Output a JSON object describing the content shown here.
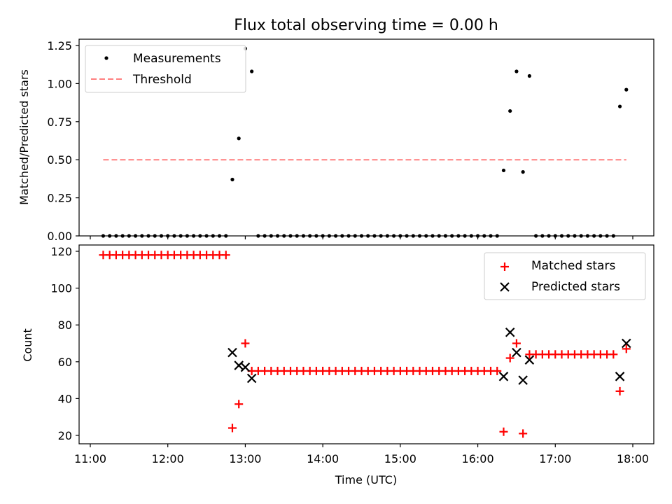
{
  "chart_data": [
    {
      "type": "scatter",
      "title": "Flux total observing time = 0.00 h",
      "xlabel": "",
      "ylabel": "Matched/Predicted stars",
      "xlim": [
        "11:00",
        "18:00"
      ],
      "ylim": [
        0,
        1.25
      ],
      "yticks": [
        "0.00",
        "0.25",
        "0.50",
        "0.75",
        "1.00",
        "1.25"
      ],
      "legend": "top-left",
      "legend_entries": [
        "Measurements",
        "Threshold"
      ],
      "series": [
        {
          "name": "Measurements",
          "color": "#000000",
          "marker": "dot",
          "points": [
            [
              "11:10",
              0
            ],
            [
              "11:15",
              0
            ],
            [
              "11:20",
              0
            ],
            [
              "11:25",
              0
            ],
            [
              "11:30",
              0
            ],
            [
              "11:35",
              0
            ],
            [
              "11:40",
              0
            ],
            [
              "11:45",
              0
            ],
            [
              "11:50",
              0
            ],
            [
              "11:55",
              0
            ],
            [
              "12:00",
              0
            ],
            [
              "12:05",
              0
            ],
            [
              "12:10",
              0
            ],
            [
              "12:15",
              0
            ],
            [
              "12:20",
              0
            ],
            [
              "12:25",
              0
            ],
            [
              "12:30",
              0
            ],
            [
              "12:35",
              0
            ],
            [
              "12:40",
              0
            ],
            [
              "12:45",
              0
            ],
            [
              "12:50",
              0.37
            ],
            [
              "12:55",
              0.64
            ],
            [
              "13:00",
              1.23
            ],
            [
              "13:05",
              1.08
            ],
            [
              "13:10",
              0
            ],
            [
              "13:15",
              0
            ],
            [
              "13:20",
              0
            ],
            [
              "13:25",
              0
            ],
            [
              "13:30",
              0
            ],
            [
              "13:35",
              0
            ],
            [
              "13:40",
              0
            ],
            [
              "13:45",
              0
            ],
            [
              "13:50",
              0
            ],
            [
              "13:55",
              0
            ],
            [
              "14:00",
              0
            ],
            [
              "14:05",
              0
            ],
            [
              "14:10",
              0
            ],
            [
              "14:15",
              0
            ],
            [
              "14:20",
              0
            ],
            [
              "14:25",
              0
            ],
            [
              "14:30",
              0
            ],
            [
              "14:35",
              0
            ],
            [
              "14:40",
              0
            ],
            [
              "14:45",
              0
            ],
            [
              "14:50",
              0
            ],
            [
              "14:55",
              0
            ],
            [
              "15:00",
              0
            ],
            [
              "15:05",
              0
            ],
            [
              "15:10",
              0
            ],
            [
              "15:15",
              0
            ],
            [
              "15:20",
              0
            ],
            [
              "15:25",
              0
            ],
            [
              "15:30",
              0
            ],
            [
              "15:35",
              0
            ],
            [
              "15:40",
              0
            ],
            [
              "15:45",
              0
            ],
            [
              "15:50",
              0
            ],
            [
              "15:55",
              0
            ],
            [
              "16:00",
              0
            ],
            [
              "16:05",
              0
            ],
            [
              "16:10",
              0
            ],
            [
              "16:15",
              0
            ],
            [
              "16:20",
              0.43
            ],
            [
              "16:25",
              0.82
            ],
            [
              "16:30",
              1.08
            ],
            [
              "16:35",
              0.42
            ],
            [
              "16:40",
              1.05
            ],
            [
              "16:45",
              0
            ],
            [
              "16:50",
              0
            ],
            [
              "16:55",
              0
            ],
            [
              "17:00",
              0
            ],
            [
              "17:05",
              0
            ],
            [
              "17:10",
              0
            ],
            [
              "17:15",
              0
            ],
            [
              "17:20",
              0
            ],
            [
              "17:25",
              0
            ],
            [
              "17:30",
              0
            ],
            [
              "17:35",
              0
            ],
            [
              "17:40",
              0
            ],
            [
              "17:45",
              0
            ],
            [
              "17:50",
              0.85
            ],
            [
              "17:55",
              0.96
            ]
          ]
        },
        {
          "name": "Threshold",
          "color": "#ff7f7f",
          "style": "dashed",
          "points": [
            [
              "11:10",
              0.5
            ],
            [
              "17:55",
              0.5
            ]
          ]
        }
      ]
    },
    {
      "type": "scatter",
      "title": "",
      "xlabel": "Time (UTC)",
      "ylabel": "Count",
      "xlim": [
        "11:00",
        "18:00"
      ],
      "ylim": [
        17,
        122
      ],
      "yticks": [
        "20",
        "40",
        "60",
        "80",
        "100",
        "120"
      ],
      "xticks": [
        "11:00",
        "12:00",
        "13:00",
        "14:00",
        "15:00",
        "16:00",
        "17:00",
        "18:00"
      ],
      "legend": "top-right",
      "legend_entries": [
        "Matched stars",
        "Predicted stars"
      ],
      "series": [
        {
          "name": "Matched stars",
          "color": "#ff0000",
          "marker": "plus",
          "points": [
            [
              "11:10",
              118
            ],
            [
              "11:15",
              118
            ],
            [
              "11:20",
              118
            ],
            [
              "11:25",
              118
            ],
            [
              "11:30",
              118
            ],
            [
              "11:35",
              118
            ],
            [
              "11:40",
              118
            ],
            [
              "11:45",
              118
            ],
            [
              "11:50",
              118
            ],
            [
              "11:55",
              118
            ],
            [
              "12:00",
              118
            ],
            [
              "12:05",
              118
            ],
            [
              "12:10",
              118
            ],
            [
              "12:15",
              118
            ],
            [
              "12:20",
              118
            ],
            [
              "12:25",
              118
            ],
            [
              "12:30",
              118
            ],
            [
              "12:35",
              118
            ],
            [
              "12:40",
              118
            ],
            [
              "12:45",
              118
            ],
            [
              "12:50",
              24
            ],
            [
              "12:55",
              37
            ],
            [
              "13:00",
              70
            ],
            [
              "13:05",
              55
            ],
            [
              "13:10",
              55
            ],
            [
              "13:15",
              55
            ],
            [
              "13:20",
              55
            ],
            [
              "13:25",
              55
            ],
            [
              "13:30",
              55
            ],
            [
              "13:35",
              55
            ],
            [
              "13:40",
              55
            ],
            [
              "13:45",
              55
            ],
            [
              "13:50",
              55
            ],
            [
              "13:55",
              55
            ],
            [
              "14:00",
              55
            ],
            [
              "14:05",
              55
            ],
            [
              "14:10",
              55
            ],
            [
              "14:15",
              55
            ],
            [
              "14:20",
              55
            ],
            [
              "14:25",
              55
            ],
            [
              "14:30",
              55
            ],
            [
              "14:35",
              55
            ],
            [
              "14:40",
              55
            ],
            [
              "14:45",
              55
            ],
            [
              "14:50",
              55
            ],
            [
              "14:55",
              55
            ],
            [
              "15:00",
              55
            ],
            [
              "15:05",
              55
            ],
            [
              "15:10",
              55
            ],
            [
              "15:15",
              55
            ],
            [
              "15:20",
              55
            ],
            [
              "15:25",
              55
            ],
            [
              "15:30",
              55
            ],
            [
              "15:35",
              55
            ],
            [
              "15:40",
              55
            ],
            [
              "15:45",
              55
            ],
            [
              "15:50",
              55
            ],
            [
              "15:55",
              55
            ],
            [
              "16:00",
              55
            ],
            [
              "16:05",
              55
            ],
            [
              "16:10",
              55
            ],
            [
              "16:15",
              55
            ],
            [
              "16:20",
              22
            ],
            [
              "16:25",
              62
            ],
            [
              "16:30",
              70
            ],
            [
              "16:35",
              21
            ],
            [
              "16:40",
              64
            ],
            [
              "16:45",
              64
            ],
            [
              "16:50",
              64
            ],
            [
              "16:55",
              64
            ],
            [
              "17:00",
              64
            ],
            [
              "17:05",
              64
            ],
            [
              "17:10",
              64
            ],
            [
              "17:15",
              64
            ],
            [
              "17:20",
              64
            ],
            [
              "17:25",
              64
            ],
            [
              "17:30",
              64
            ],
            [
              "17:35",
              64
            ],
            [
              "17:40",
              64
            ],
            [
              "17:45",
              64
            ],
            [
              "17:50",
              44
            ],
            [
              "17:55",
              67
            ]
          ]
        },
        {
          "name": "Predicted stars",
          "color": "#000000",
          "marker": "x",
          "points": [
            [
              "12:50",
              65
            ],
            [
              "12:55",
              58
            ],
            [
              "13:00",
              57
            ],
            [
              "13:05",
              51
            ],
            [
              "16:20",
              52
            ],
            [
              "16:25",
              76
            ],
            [
              "16:30",
              65
            ],
            [
              "16:35",
              50
            ],
            [
              "16:40",
              61
            ],
            [
              "17:50",
              52
            ],
            [
              "17:55",
              70
            ]
          ]
        }
      ]
    }
  ]
}
